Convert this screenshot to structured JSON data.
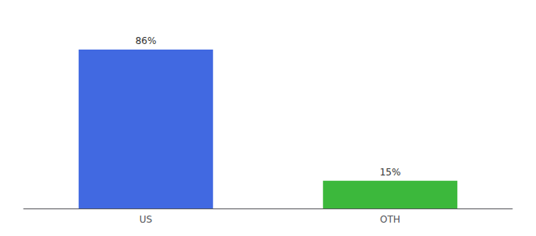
{
  "chart_data": {
    "type": "bar",
    "categories": [
      "US",
      "OTH"
    ],
    "values": [
      86,
      15
    ],
    "value_labels": [
      "86%",
      "15%"
    ],
    "colors": [
      "#4169e1",
      "#3cb83c"
    ],
    "ylim": [
      0,
      100
    ],
    "grid": false,
    "data_labels": true,
    "tick_labels": "x"
  }
}
